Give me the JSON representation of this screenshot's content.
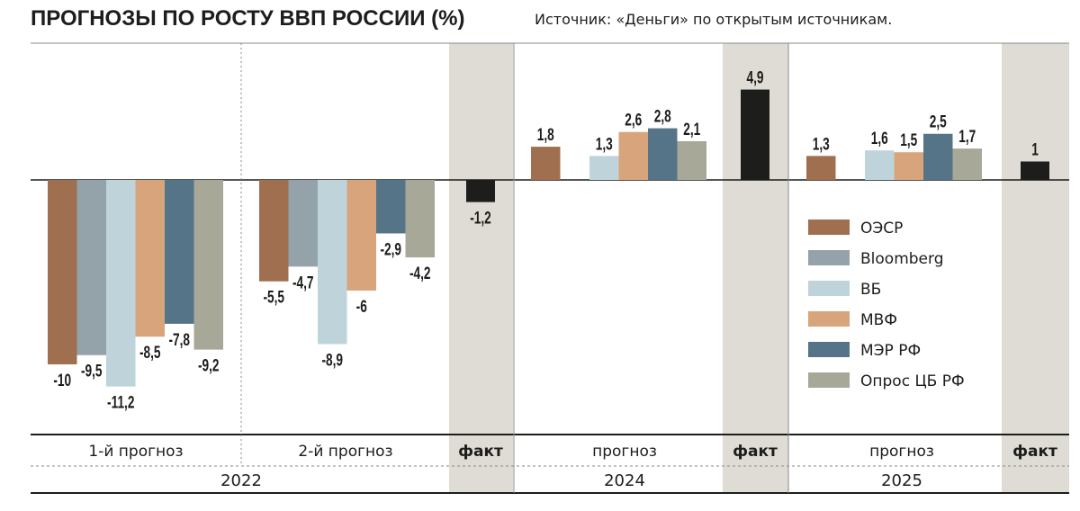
{
  "header": {
    "title": "ПРОГНОЗЫ ПО РОСТУ ВВП РОССИИ (%)",
    "source": "Источник: «Деньги» по открытым источникам."
  },
  "colors": {
    "ОЭСР": "#a06f4f",
    "Bloomberg": "#94a3a9",
    "ВБ": "#bfd3db",
    "МВФ": "#d7a47c",
    "МЭР РФ": "#567487",
    "Опрос ЦБ РФ": "#a7a898",
    "fact": "#1d1d1b",
    "fact_band": "#dedcd4"
  },
  "chart_data": {
    "type": "bar",
    "title": "ПРОГНОЗЫ ПО РОСТУ ВВП РОССИИ (%)",
    "xlabel": "",
    "ylabel": "",
    "ylim": [
      -11.2,
      4.9
    ],
    "grid": false,
    "legend_position": "right",
    "series_names": [
      "ОЭСР",
      "Bloomberg",
      "ВБ",
      "МВФ",
      "МЭР РФ",
      "Опрос ЦБ РФ"
    ],
    "groups": [
      {
        "key": "g1",
        "year": "2022",
        "label": "1-й прогноз",
        "kind": "forecast",
        "values": [
          -10,
          -9.5,
          -11.2,
          -8.5,
          -7.8,
          -9.2
        ],
        "value_labels": [
          "-10",
          "-9,5",
          "-11,2",
          "-8,5",
          "-7,8",
          "-9,2"
        ]
      },
      {
        "key": "g2",
        "year": "2022",
        "label": "2-й прогноз",
        "kind": "forecast",
        "values": [
          -5.5,
          -4.7,
          -8.9,
          -6,
          -2.9,
          -4.2
        ],
        "value_labels": [
          "-5,5",
          "-4,7",
          "-8,9",
          "-6",
          "-2,9",
          "-4,2"
        ]
      },
      {
        "key": "f2022",
        "year": "2022",
        "label": "факт",
        "kind": "fact",
        "values": [
          -1.2
        ],
        "value_labels": [
          "-1,2"
        ]
      },
      {
        "key": "g2024",
        "year": "2024",
        "label": "прогноз",
        "kind": "forecast",
        "values": [
          1.8,
          null,
          1.3,
          2.6,
          2.8,
          2.1
        ],
        "value_labels": [
          "1,8",
          "",
          "1,3",
          "2,6",
          "2,8",
          "2,1"
        ]
      },
      {
        "key": "f2024",
        "year": "2024",
        "label": "факт",
        "kind": "fact",
        "values": [
          4.9
        ],
        "value_labels": [
          "4,9"
        ]
      },
      {
        "key": "g2025",
        "year": "2025",
        "label": "прогноз",
        "kind": "forecast",
        "values": [
          1.3,
          null,
          1.6,
          1.5,
          2.5,
          1.7
        ],
        "value_labels": [
          "1,3",
          "",
          "1,6",
          "1,5",
          "2,5",
          "1,7"
        ]
      },
      {
        "key": "f2025",
        "year": "2025",
        "label": "факт",
        "kind": "fact",
        "values": [
          1
        ],
        "value_labels": [
          "1"
        ]
      }
    ],
    "years": [
      {
        "key": "y2022",
        "label": "2022"
      },
      {
        "key": "y2024",
        "label": "2024"
      },
      {
        "key": "y2025",
        "label": "2025"
      }
    ]
  }
}
